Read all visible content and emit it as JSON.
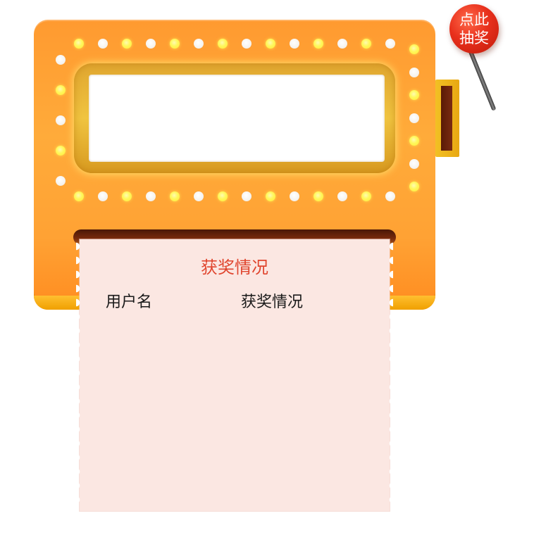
{
  "machine": {
    "lever_button_line1": "点此",
    "lever_button_line2": "抽奖",
    "colors": {
      "body": "#ffa234",
      "window_frame": "#f0c440",
      "knob": "#e8301c",
      "ticket": "#fbe7e2"
    }
  },
  "ticket": {
    "title": "获奖情况",
    "columns": [
      "用户名",
      "获奖情况"
    ],
    "rows": []
  }
}
